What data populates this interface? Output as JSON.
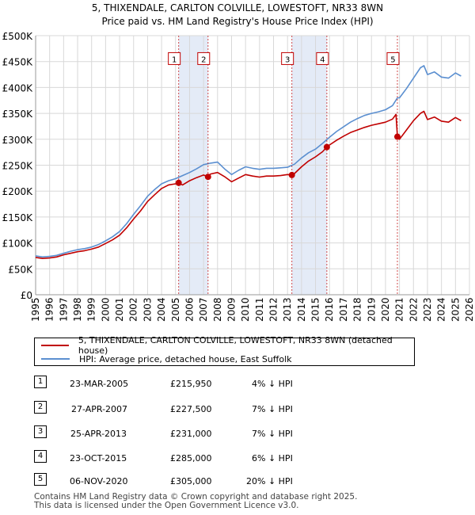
{
  "chart_data": {
    "type": "line",
    "title": "5, THIXENDALE, CARLTON COLVILLE, LOWESTOFT, NR33 8WN",
    "subtitle": "Price paid vs. HM Land Registry's House Price Index (HPI)",
    "xlim": [
      1995,
      2026
    ],
    "ylim": [
      0,
      500000
    ],
    "x_ticks": [
      1995,
      1996,
      1997,
      1998,
      1999,
      2000,
      2001,
      2002,
      2003,
      2004,
      2005,
      2006,
      2007,
      2008,
      2009,
      2010,
      2011,
      2012,
      2013,
      2014,
      2015,
      2016,
      2017,
      2018,
      2019,
      2020,
      2021,
      2022,
      2023,
      2024,
      2025,
      2026
    ],
    "y_ticks": [
      {
        "value": 0,
        "label": "£0"
      },
      {
        "value": 50000,
        "label": "£50K"
      },
      {
        "value": 100000,
        "label": "£100K"
      },
      {
        "value": 150000,
        "label": "£150K"
      },
      {
        "value": 200000,
        "label": "£200K"
      },
      {
        "value": 250000,
        "label": "£250K"
      },
      {
        "value": 300000,
        "label": "£300K"
      },
      {
        "value": 350000,
        "label": "£350K"
      },
      {
        "value": 400000,
        "label": "£400K"
      },
      {
        "value": 450000,
        "label": "£450K"
      },
      {
        "value": 500000,
        "label": "£500K"
      }
    ],
    "grid": true,
    "shaded_periods": [
      [
        2005.22,
        2007.32
      ],
      [
        2013.31,
        2015.81
      ]
    ],
    "series": [
      {
        "name": "HPI: Average price, detached house, East Suffolk",
        "color": "#5b8fd0",
        "x": [
          1995.0,
          1995.5,
          1996.0,
          1996.5,
          1997.0,
          1997.5,
          1998.0,
          1998.5,
          1999.0,
          1999.5,
          2000.0,
          2000.5,
          2001.0,
          2001.5,
          2002.0,
          2002.5,
          2003.0,
          2003.5,
          2004.0,
          2004.5,
          2005.0,
          2005.5,
          2006.0,
          2006.5,
          2007.0,
          2007.5,
          2008.0,
          2008.5,
          2009.0,
          2009.5,
          2010.0,
          2010.5,
          2011.0,
          2011.5,
          2012.0,
          2012.5,
          2013.0,
          2013.5,
          2014.0,
          2014.5,
          2015.0,
          2015.5,
          2016.0,
          2016.5,
          2017.0,
          2017.5,
          2018.0,
          2018.5,
          2019.0,
          2019.5,
          2020.0,
          2020.5,
          2020.85,
          2021.0,
          2021.5,
          2022.0,
          2022.5,
          2022.75,
          2023.0,
          2023.5,
          2024.0,
          2024.5,
          2025.0,
          2025.4
        ],
        "values": [
          75000,
          73000,
          74000,
          76000,
          80000,
          84000,
          87000,
          89000,
          92000,
          97000,
          104000,
          112000,
          122000,
          137000,
          155000,
          172000,
          190000,
          203000,
          214000,
          220000,
          224000,
          230000,
          236000,
          243000,
          251000,
          254000,
          256000,
          243000,
          232000,
          240000,
          247000,
          244000,
          242000,
          244000,
          244000,
          245000,
          246000,
          252000,
          264000,
          274000,
          281000,
          292000,
          304000,
          315000,
          324000,
          333000,
          340000,
          346000,
          350000,
          353000,
          357000,
          365000,
          380000,
          380000,
          398000,
          418000,
          438000,
          442000,
          425000,
          430000,
          420000,
          418000,
          428000,
          422000
        ]
      },
      {
        "name": "5, THIXENDALE, CARLTON COLVILLE, LOWESTOFT, NR33 8WN (detached house)",
        "color": "#c00000",
        "x": [
          1995.0,
          1995.5,
          1996.0,
          1996.5,
          1997.0,
          1997.5,
          1998.0,
          1998.5,
          1999.0,
          1999.5,
          2000.0,
          2000.5,
          2001.0,
          2001.5,
          2002.0,
          2002.5,
          2003.0,
          2003.5,
          2004.0,
          2004.5,
          2005.0,
          2005.22,
          2005.5,
          2006.0,
          2006.5,
          2007.0,
          2007.32,
          2007.5,
          2008.0,
          2008.5,
          2009.0,
          2009.5,
          2010.0,
          2010.5,
          2011.0,
          2011.5,
          2012.0,
          2012.5,
          2013.0,
          2013.31,
          2013.5,
          2014.0,
          2014.5,
          2015.0,
          2015.5,
          2015.81,
          2016.0,
          2016.5,
          2017.0,
          2017.5,
          2018.0,
          2018.5,
          2019.0,
          2019.5,
          2020.0,
          2020.5,
          2020.75,
          2020.85,
          2021.0,
          2021.5,
          2022.0,
          2022.5,
          2022.75,
          2023.0,
          2023.5,
          2024.0,
          2024.5,
          2025.0,
          2025.4
        ],
        "values": [
          72000,
          70000,
          71000,
          73000,
          77000,
          80000,
          83000,
          85000,
          88000,
          92000,
          99000,
          106000,
          115000,
          129000,
          146000,
          162000,
          180000,
          193000,
          205000,
          212000,
          214000,
          215950,
          212000,
          220000,
          226000,
          231000,
          227500,
          233000,
          236000,
          228000,
          218000,
          225000,
          232000,
          229000,
          227000,
          229000,
          229000,
          230000,
          232000,
          231000,
          234000,
          247000,
          258000,
          266000,
          276000,
          285000,
          289000,
          298000,
          306000,
          313000,
          318000,
          323000,
          327000,
          330000,
          333000,
          339000,
          348000,
          305000,
          300000,
          318000,
          336000,
          350000,
          354000,
          338000,
          343000,
          335000,
          333000,
          342000,
          336000
        ]
      }
    ],
    "markers": [
      {
        "id": "1",
        "x": 2005.22,
        "value": 215950
      },
      {
        "id": "2",
        "x": 2007.32,
        "value": 227500
      },
      {
        "id": "3",
        "x": 2013.31,
        "value": 231000
      },
      {
        "id": "4",
        "x": 2015.81,
        "value": 285000
      },
      {
        "id": "5",
        "x": 2020.85,
        "value": 305000
      }
    ],
    "marker_label_value": 455000
  },
  "legend": {
    "property_label": "5, THIXENDALE, CARLTON COLVILLE, LOWESTOFT, NR33 8WN (detached house)",
    "hpi_label": "HPI: Average price, detached house, East Suffolk",
    "property_color": "#c00000",
    "hpi_color": "#5b8fd0"
  },
  "sales": [
    {
      "num": "1",
      "date": "23-MAR-2005",
      "price": "£215,950",
      "hpi": "4% ↓ HPI"
    },
    {
      "num": "2",
      "date": "27-APR-2007",
      "price": "£227,500",
      "hpi": "7% ↓ HPI"
    },
    {
      "num": "3",
      "date": "25-APR-2013",
      "price": "£231,000",
      "hpi": "7% ↓ HPI"
    },
    {
      "num": "4",
      "date": "23-OCT-2015",
      "price": "£285,000",
      "hpi": "6% ↓ HPI"
    },
    {
      "num": "5",
      "date": "06-NOV-2020",
      "price": "£305,000",
      "hpi": "20% ↓ HPI"
    }
  ],
  "footer": {
    "line1": "Contains HM Land Registry data © Crown copyright and database right 2025.",
    "line2": "This data is licensed under the Open Government Licence v3.0."
  }
}
